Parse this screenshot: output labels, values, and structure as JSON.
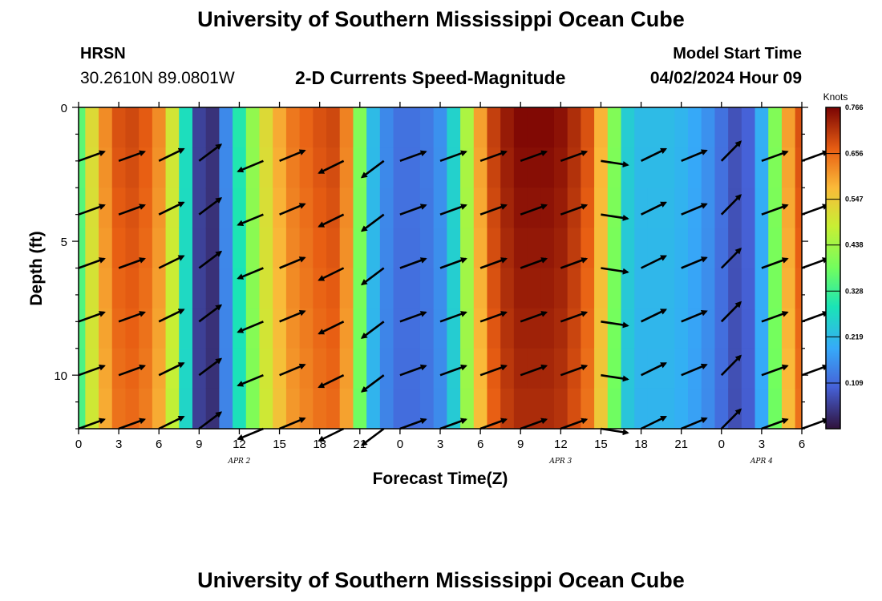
{
  "header": {
    "title": "University of Southern Mississippi Ocean Cube",
    "station": "HRSN",
    "coords": "30.2610N  89.0801W",
    "subtitle": "2-D Currents Speed-Magnitude",
    "start_label": "Model Start Time",
    "start_value": "04/02/2024 Hour 09"
  },
  "footer": {
    "title": "University of Southern Mississippi Ocean Cube"
  },
  "chart_data": {
    "type": "heatmap",
    "title": "2-D Currents Speed-Magnitude",
    "xlabel": "Forecast Time(Z)",
    "ylabel": "Depth (ft)",
    "x_range_hours": [
      0,
      54
    ],
    "y_range_ft": [
      0,
      12
    ],
    "x_ticks": [
      "0",
      "3",
      "6",
      "9",
      "12",
      "15",
      "18",
      "21",
      "0",
      "3",
      "6",
      "9",
      "12",
      "15",
      "18",
      "21",
      "0",
      "3",
      "6"
    ],
    "y_ticks": [
      "0",
      "5",
      "10"
    ],
    "date_labels": [
      {
        "text": "APR 2",
        "hour": 12
      },
      {
        "text": "APR 3",
        "hour": 36
      },
      {
        "text": "APR 4",
        "hour": 51
      }
    ],
    "colorbar": {
      "unit": "Knots",
      "min": 0.0,
      "max": 0.766,
      "tick_labels": [
        "0.766",
        "0.656",
        "0.547",
        "0.438",
        "0.328",
        "0.219",
        "0.109"
      ]
    },
    "speed_by_hour": [
      0.36,
      0.52,
      0.62,
      0.68,
      0.69,
      0.67,
      0.62,
      0.5,
      0.28,
      0.06,
      0.04,
      0.15,
      0.3,
      0.42,
      0.52,
      0.59,
      0.64,
      0.66,
      0.68,
      0.69,
      0.63,
      0.4,
      0.22,
      0.15,
      0.12,
      0.12,
      0.13,
      0.16,
      0.26,
      0.45,
      0.6,
      0.7,
      0.74,
      0.76,
      0.76,
      0.76,
      0.75,
      0.72,
      0.68,
      0.58,
      0.4,
      0.25,
      0.22,
      0.22,
      0.22,
      0.21,
      0.19,
      0.16,
      0.12,
      0.08,
      0.1,
      0.2,
      0.4,
      0.6,
      0.68
    ],
    "vectors": [
      {
        "hour": 0,
        "dir": [
          0.94,
          -0.34
        ]
      },
      {
        "hour": 3,
        "dir": [
          0.94,
          -0.34
        ]
      },
      {
        "hour": 6,
        "dir": [
          0.9,
          -0.44
        ]
      },
      {
        "hour": 9,
        "dir": [
          0.8,
          -0.6
        ]
      },
      {
        "hour": 12,
        "dir": [
          -0.92,
          0.38
        ]
      },
      {
        "hour": 15,
        "dir": [
          0.92,
          -0.38
        ]
      },
      {
        "hour": 18,
        "dir": [
          -0.9,
          0.44
        ]
      },
      {
        "hour": 21,
        "dir": [
          -0.8,
          0.6
        ]
      },
      {
        "hour": 24,
        "dir": [
          0.94,
          -0.34
        ]
      },
      {
        "hour": 27,
        "dir": [
          0.94,
          -0.34
        ]
      },
      {
        "hour": 30,
        "dir": [
          0.94,
          -0.34
        ]
      },
      {
        "hour": 33,
        "dir": [
          0.94,
          -0.34
        ]
      },
      {
        "hour": 36,
        "dir": [
          0.94,
          -0.34
        ]
      },
      {
        "hour": 39,
        "dir": [
          0.98,
          0.15
        ]
      },
      {
        "hour": 42,
        "dir": [
          0.9,
          -0.44
        ]
      },
      {
        "hour": 45,
        "dir": [
          0.92,
          -0.38
        ]
      },
      {
        "hour": 48,
        "dir": [
          0.7,
          -0.71
        ]
      },
      {
        "hour": 51,
        "dir": [
          0.94,
          -0.34
        ]
      },
      {
        "hour": 54,
        "dir": [
          0.94,
          -0.34
        ]
      }
    ]
  }
}
